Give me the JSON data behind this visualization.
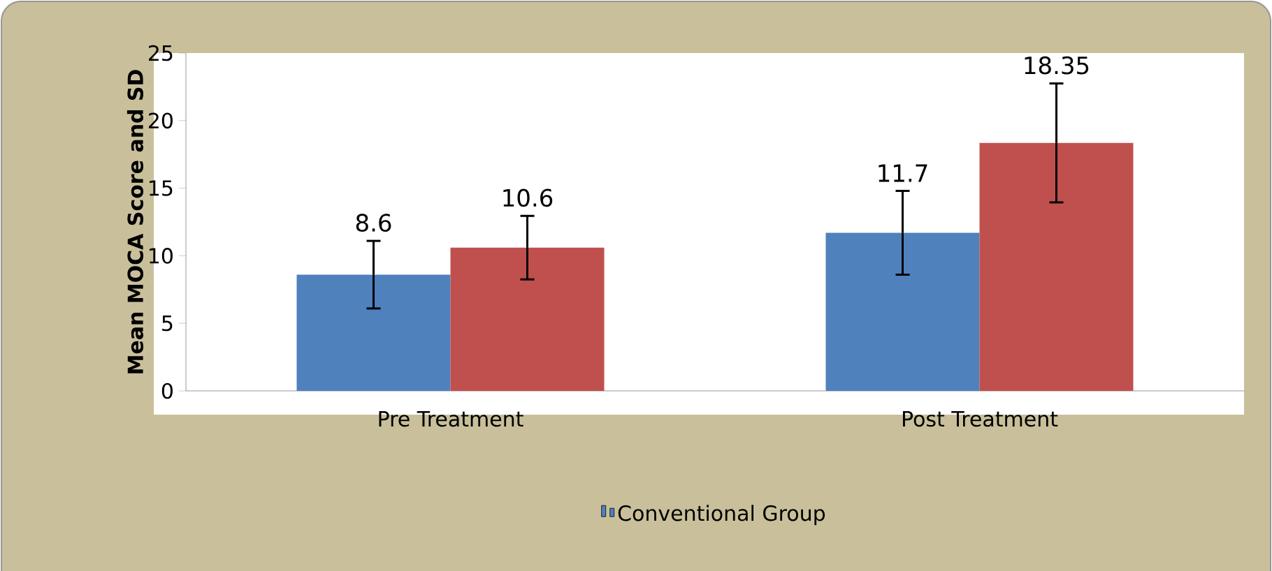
{
  "chart_data": {
    "type": "bar",
    "ylabel": "**Mean MOCA Score and SD**",
    "categories": [
      "Pre Treatment",
      "Post Treatment"
    ],
    "series": [
      {
        "name": "Conventional Group",
        "color": "#4f81bd",
        "values": [
          8.6,
          11.7
        ],
        "errors": [
          2.5,
          3.1
        ]
      },
      {
        "color": "#c0504d",
        "values": [
          10.6,
          18.35
        ],
        "errors": [
          2.35,
          4.4
        ]
      }
    ],
    "ylim": [
      0,
      25
    ],
    "yticks": [
      0,
      5,
      10,
      15,
      20,
      25
    ],
    "data_labels": true,
    "legend": "bottom"
  }
}
